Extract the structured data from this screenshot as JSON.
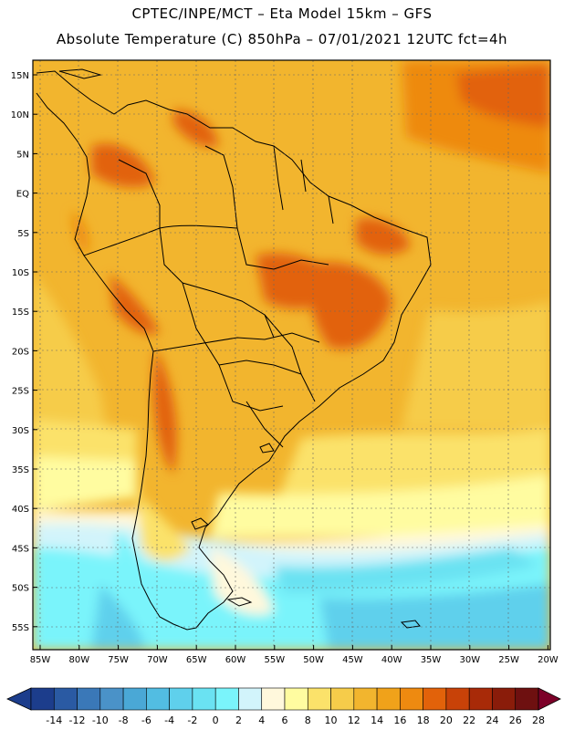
{
  "title": {
    "line1": "CPTEC/INPE/MCT –  Eta Model 15km – GFS",
    "line2": "Absolute Temperature (C) 850hPa – 07/01/2021 12UTC fct=4h"
  },
  "map": {
    "lat_ticks": [
      "15N",
      "10N",
      "5N",
      "EQ",
      "5S",
      "10S",
      "15S",
      "20S",
      "25S",
      "30S",
      "35S",
      "40S",
      "45S",
      "50S",
      "55S"
    ],
    "lon_ticks": [
      "85W",
      "80W",
      "75W",
      "70W",
      "65W",
      "60W",
      "55W",
      "50W",
      "45W",
      "40W",
      "35W",
      "30W",
      "25W",
      "20W"
    ],
    "grid": "dotted",
    "land_color": "#ffffff"
  },
  "colorbar": {
    "labels": [
      "-14",
      "-12",
      "-10",
      "-8",
      "-6",
      "-4",
      "-2",
      "0",
      "2",
      "4",
      "6",
      "8",
      "10",
      "12",
      "14",
      "16",
      "18",
      "20",
      "22",
      "24",
      "26",
      "28"
    ],
    "colors": [
      "#1c3d8c",
      "#2a5aa3",
      "#3a78b8",
      "#4a92c8",
      "#4aa8d6",
      "#52bde2",
      "#5fd0ec",
      "#6ae2f2",
      "#7af4fb",
      "#d2f4fb",
      "#fff8dc",
      "#fffca0",
      "#fbe26a",
      "#f6cc4a",
      "#f2b52e",
      "#f0a21a",
      "#ee8a10",
      "#e2620a",
      "#c84208",
      "#a82a08",
      "#8a1c0a",
      "#6e1010",
      "#7c0028"
    ],
    "min_color": "#1c3d8c",
    "max_color": "#7c0028"
  }
}
